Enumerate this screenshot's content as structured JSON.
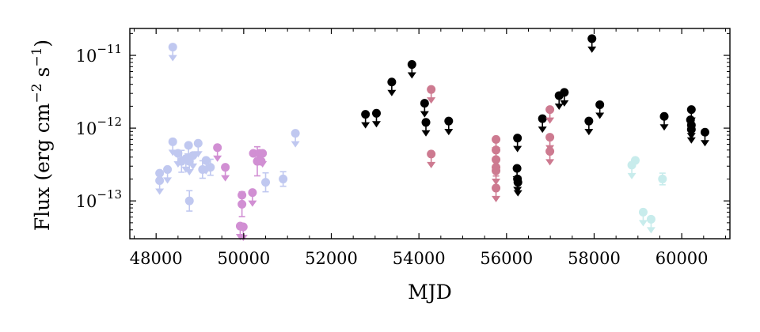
{
  "chart_data": {
    "type": "scatter",
    "xlabel": "MJD",
    "ylabel_text": "Flux (erg cm",
    "ylabel_exp1": "−2",
    "ylabel_mid": " s",
    "ylabel_exp2": "−1",
    "ylabel_close": ")",
    "xlim": [
      47400,
      61100
    ],
    "ylim_log10": [
      -13.52,
      -10.63
    ],
    "yscale": "log",
    "x_ticks": [
      {
        "value": 48000,
        "label": "48000"
      },
      {
        "value": 50000,
        "label": "50000"
      },
      {
        "value": 52000,
        "label": "52000"
      },
      {
        "value": 54000,
        "label": "54000"
      },
      {
        "value": 56000,
        "label": "56000"
      },
      {
        "value": 58000,
        "label": "58000"
      },
      {
        "value": 60000,
        "label": "60000"
      }
    ],
    "y_ticks": [
      {
        "exp": -11,
        "base": "10",
        "sup": "−11"
      },
      {
        "exp": -12,
        "base": "10",
        "sup": "−12"
      },
      {
        "exp": -13,
        "base": "10",
        "sup": "−13"
      }
    ],
    "grid": false,
    "series": [
      {
        "color": "#c0c8f0",
        "points": [
          {
            "x": 48080,
            "y": 1.9e-13,
            "ul": true
          },
          {
            "x": 48080,
            "y": 2.4e-13,
            "ul": false
          },
          {
            "x": 48260,
            "y": 2.7e-13,
            "ul": true
          },
          {
            "x": 48380,
            "y": 1.3e-11,
            "ul": true
          },
          {
            "x": 48380,
            "y": 6.5e-13,
            "ul": true
          },
          {
            "x": 48500,
            "y": 4.5e-13,
            "ul": true
          },
          {
            "x": 48580,
            "y": 3.5e-13,
            "ul": false,
            "err": 0.15
          },
          {
            "x": 48680,
            "y": 3.8e-13,
            "ul": true
          },
          {
            "x": 48740,
            "y": 5.8e-13,
            "ul": true
          },
          {
            "x": 48760,
            "y": 3.5e-13,
            "ul": true
          },
          {
            "x": 48760,
            "y": 1e-13,
            "ul": false,
            "err": 0.14
          },
          {
            "x": 48840,
            "y": 4.2e-13,
            "ul": true
          },
          {
            "x": 48960,
            "y": 6.2e-13,
            "ul": true
          },
          {
            "x": 49060,
            "y": 2.7e-13,
            "ul": false,
            "err": 0.12
          },
          {
            "x": 49140,
            "y": 3.6e-13,
            "ul": true
          },
          {
            "x": 49240,
            "y": 2.9e-13,
            "ul": false,
            "err": 0.11
          },
          {
            "x": 50500,
            "y": 1.8e-13,
            "ul": false,
            "err": 0.13
          },
          {
            "x": 50900,
            "y": 2e-13,
            "ul": false,
            "err": 0.1
          },
          {
            "x": 51180,
            "y": 8.5e-13,
            "ul": true
          }
        ]
      },
      {
        "color": "#d18fd3",
        "points": [
          {
            "x": 49400,
            "y": 5.4e-13,
            "ul": true
          },
          {
            "x": 49580,
            "y": 2.9e-13,
            "ul": true
          },
          {
            "x": 49920,
            "y": 4.5e-14,
            "ul": true
          },
          {
            "x": 49960,
            "y": 1.2e-13,
            "ul": true
          },
          {
            "x": 49960,
            "y": 9e-14,
            "ul": false,
            "err": 0.17
          },
          {
            "x": 49990,
            "y": 4.4e-14,
            "ul": true
          },
          {
            "x": 50200,
            "y": 1.3e-13,
            "ul": true
          },
          {
            "x": 50220,
            "y": 4.5e-13,
            "ul": false
          },
          {
            "x": 50310,
            "y": 3.5e-13,
            "ul": false,
            "err": 0.2
          },
          {
            "x": 50360,
            "y": 4.5e-13,
            "ul": false
          },
          {
            "x": 50400,
            "y": 3.5e-13,
            "ul": false
          },
          {
            "x": 50430,
            "y": 4.5e-13,
            "ul": true
          }
        ]
      },
      {
        "color": "#000000",
        "points": [
          {
            "x": 52780,
            "y": 1.55e-12,
            "ul": true
          },
          {
            "x": 53030,
            "y": 1.6e-12,
            "ul": true
          },
          {
            "x": 53380,
            "y": 4.3e-12,
            "ul": true
          },
          {
            "x": 53840,
            "y": 7.5e-12,
            "ul": true
          },
          {
            "x": 54130,
            "y": 2.2e-12,
            "ul": true
          },
          {
            "x": 54160,
            "y": 1.2e-12,
            "ul": true
          },
          {
            "x": 54680,
            "y": 1.25e-12,
            "ul": true
          },
          {
            "x": 56250,
            "y": 7.3e-13,
            "ul": true
          },
          {
            "x": 56240,
            "y": 2.8e-13,
            "ul": true
          },
          {
            "x": 56250,
            "y": 2e-13,
            "ul": true
          },
          {
            "x": 56260,
            "y": 1.8e-13,
            "ul": true
          },
          {
            "x": 56820,
            "y": 1.35e-12,
            "ul": true
          },
          {
            "x": 57200,
            "y": 2.8e-12,
            "ul": true
          },
          {
            "x": 57320,
            "y": 3.1e-12,
            "ul": true
          },
          {
            "x": 57880,
            "y": 1.25e-12,
            "ul": true
          },
          {
            "x": 57950,
            "y": 1.7e-11,
            "ul": true
          },
          {
            "x": 58130,
            "y": 2.1e-12,
            "ul": true
          },
          {
            "x": 59600,
            "y": 1.45e-12,
            "ul": true
          },
          {
            "x": 60220,
            "y": 1.8e-12,
            "ul": true
          },
          {
            "x": 60200,
            "y": 1.3e-12,
            "ul": false
          },
          {
            "x": 60220,
            "y": 1.1e-12,
            "ul": true
          },
          {
            "x": 60220,
            "y": 9.6e-13,
            "ul": true
          },
          {
            "x": 60530,
            "y": 8.8e-13,
            "ul": true
          }
        ]
      },
      {
        "color": "#cd7a90",
        "points": [
          {
            "x": 54280,
            "y": 3.4e-12,
            "ul": true
          },
          {
            "x": 54280,
            "y": 4.4e-13,
            "ul": true
          },
          {
            "x": 55760,
            "y": 7e-13,
            "ul": true
          },
          {
            "x": 55760,
            "y": 5e-13,
            "ul": true
          },
          {
            "x": 55760,
            "y": 3.7e-13,
            "ul": true
          },
          {
            "x": 55760,
            "y": 2.9e-13,
            "ul": false,
            "err": 0.12
          },
          {
            "x": 55760,
            "y": 2.6e-13,
            "ul": true
          },
          {
            "x": 55760,
            "y": 1.5e-13,
            "ul": true
          },
          {
            "x": 56990,
            "y": 1.8e-12,
            "ul": true
          },
          {
            "x": 56990,
            "y": 7.5e-13,
            "ul": true
          },
          {
            "x": 56990,
            "y": 4.8e-13,
            "ul": true
          }
        ]
      },
      {
        "color": "#c8ecec",
        "points": [
          {
            "x": 58860,
            "y": 3.1e-13,
            "ul": true
          },
          {
            "x": 58940,
            "y": 3.6e-13,
            "ul": false
          },
          {
            "x": 59120,
            "y": 7e-14,
            "ul": true
          },
          {
            "x": 59300,
            "y": 5.6e-14,
            "ul": true
          },
          {
            "x": 59560,
            "y": 2e-13,
            "ul": false,
            "err": 0.08
          }
        ]
      }
    ]
  }
}
